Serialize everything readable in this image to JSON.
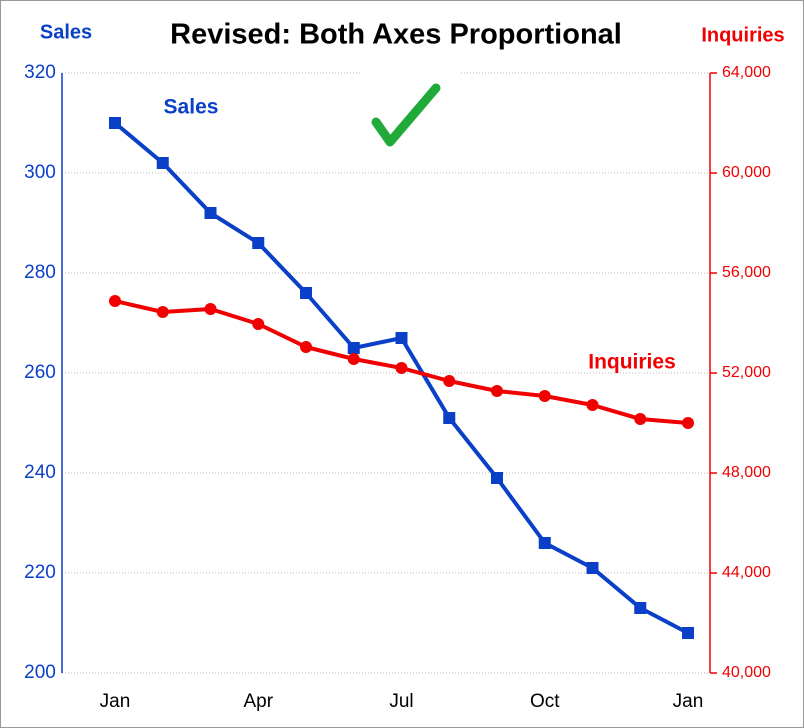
{
  "chart_data": {
    "type": "line",
    "title": "Revised: Both Axes Proportional",
    "y_axis_label": "Sales",
    "y2_axis_label": "Inquiries",
    "annotations": [
      "Sales",
      "Inquiries"
    ],
    "categories": [
      "Jan",
      null,
      null,
      "Apr",
      null,
      null,
      "Jul",
      null,
      null,
      "Oct",
      null,
      null,
      "Jan"
    ],
    "series": [
      {
        "name": "Sales",
        "color": "#0a3fc8",
        "marker": "square",
        "values": [
          310,
          302,
          292,
          286,
          276,
          265,
          267,
          251,
          239,
          226,
          221,
          213,
          208
        ]
      },
      {
        "name": "Inquiries",
        "color": "#f00000",
        "marker": "circle",
        "axis": "y2",
        "values": [
          54880,
          54440,
          54560,
          53960,
          53040,
          52560,
          52200,
          51680,
          51280,
          51080,
          50720,
          50160,
          50000
        ]
      }
    ],
    "ylim": [
      200,
      320
    ],
    "yticks": [
      200,
      220,
      240,
      260,
      280,
      300,
      320
    ],
    "y2lim": [
      40000,
      64000
    ],
    "y2ticks": [
      {
        "value": 40000,
        "label": "40,000"
      },
      {
        "value": 44000,
        "label": "44,000"
      },
      {
        "value": 48000,
        "label": "48,000"
      },
      {
        "value": 52000,
        "label": "52,000"
      },
      {
        "value": 56000,
        "label": "56,000"
      },
      {
        "value": 60000,
        "label": "60,000"
      },
      {
        "value": 64000,
        "label": "64,000"
      }
    ],
    "grid": true
  }
}
